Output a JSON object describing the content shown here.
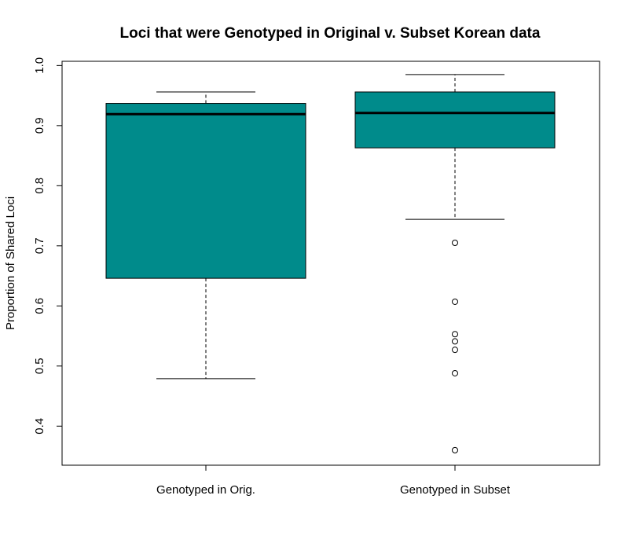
{
  "chart_data": {
    "type": "boxplot",
    "title": "Loci that were Genotyped in Original v. Subset Korean data",
    "xlabel": "",
    "ylabel": "Proportion of Shared Loci",
    "ylim": [
      0.335,
      1.007
    ],
    "yticks": [
      0.4,
      0.5,
      0.6,
      0.7,
      0.8,
      0.9,
      1.0
    ],
    "ytick_labels": [
      "0.4",
      "0.5",
      "0.6",
      "0.7",
      "0.8",
      "0.9",
      "1.0"
    ],
    "grid": false,
    "box_color": "#008B8B",
    "categories": [
      "Genotyped in Orig.",
      "Genotyped in Subset"
    ],
    "boxes": [
      {
        "category": "Genotyped in Orig.",
        "whisker_low": 0.479,
        "q1": 0.646,
        "median": 0.919,
        "q3": 0.937,
        "whisker_high": 0.956,
        "outliers": []
      },
      {
        "category": "Genotyped in Subset",
        "whisker_low": 0.744,
        "q1": 0.863,
        "median": 0.921,
        "q3": 0.956,
        "whisker_high": 0.985,
        "outliers": [
          0.705,
          0.607,
          0.553,
          0.541,
          0.527,
          0.488,
          0.36
        ]
      }
    ]
  }
}
